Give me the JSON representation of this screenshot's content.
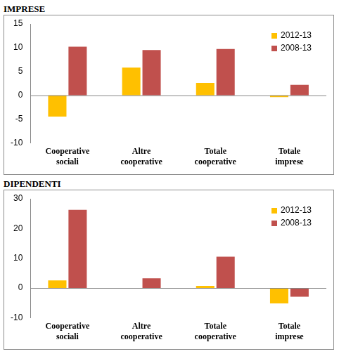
{
  "chart_data": [
    {
      "type": "bar",
      "title": "IMPRESE",
      "categories": [
        "Cooperative sociali",
        "Altre cooperative",
        "Totale cooperative",
        "Totale imprese"
      ],
      "series": [
        {
          "name": "2012-13",
          "color": "#ffc000",
          "values": [
            -4.5,
            5.8,
            2.6,
            -0.4
          ]
        },
        {
          "name": "2008-13",
          "color": "#c0504d",
          "values": [
            10.2,
            9.5,
            9.7,
            2.2
          ]
        }
      ],
      "ylim": [
        -10,
        15
      ],
      "yticks": [
        -10,
        -5,
        0,
        5,
        10,
        15
      ],
      "grid": false,
      "legend": "top-right"
    },
    {
      "type": "bar",
      "title": "DIPENDENTI",
      "categories": [
        "Cooperative sociali",
        "Altre cooperative",
        "Totale cooperative",
        "Totale imprese"
      ],
      "series": [
        {
          "name": "2012-13",
          "color": "#ffc000",
          "values": [
            2.5,
            0,
            0.7,
            -5.2
          ]
        },
        {
          "name": "2008-13",
          "color": "#c0504d",
          "values": [
            26.3,
            3.2,
            10.5,
            -3.0
          ]
        }
      ],
      "ylim": [
        -10,
        30
      ],
      "yticks": [
        -10,
        0,
        10,
        20,
        30
      ],
      "grid": false,
      "legend": "top-right"
    }
  ]
}
